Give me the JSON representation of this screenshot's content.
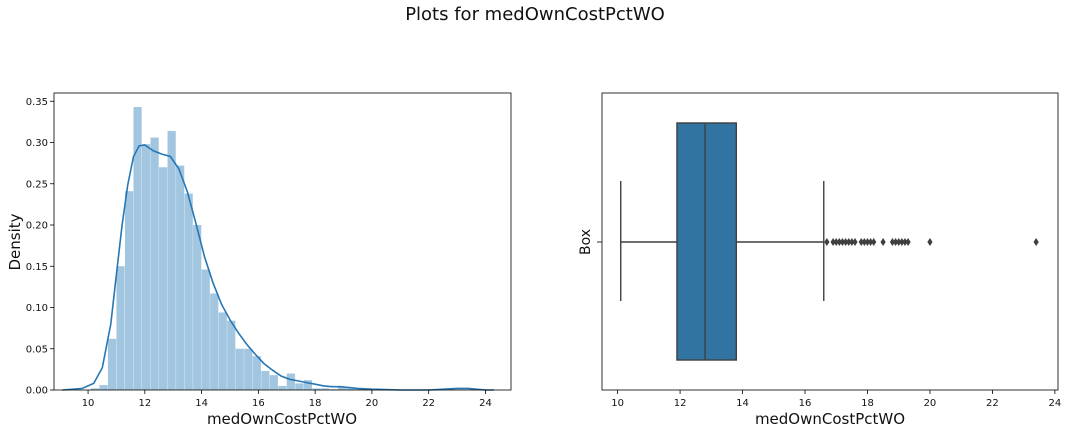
{
  "figure": {
    "title": "Plots for medOwnCostPctWO"
  },
  "colors": {
    "hist_fill": "#a3c6e0",
    "kde_line": "#2777b4",
    "box_fill": "#3274a1",
    "box_line": "#3f3f3f"
  },
  "chart_data": [
    {
      "type": "bar",
      "subtype": "histogram-with-kde",
      "xlabel": "medOwnCostPctWO",
      "ylabel": "Density",
      "xlim": [
        8.8,
        24.9
      ],
      "ylim": [
        0,
        0.36
      ],
      "xticks": [
        10,
        12,
        14,
        16,
        18,
        20,
        22,
        24
      ],
      "yticks": [
        0.0,
        0.05,
        0.1,
        0.15,
        0.2,
        0.25,
        0.3,
        0.35
      ],
      "ytick_labels": [
        "0.00",
        "0.05",
        "0.10",
        "0.15",
        "0.20",
        "0.25",
        "0.30",
        "0.35"
      ],
      "bin_edges": [
        10.1,
        10.4,
        10.7,
        11.0,
        11.3,
        11.6,
        11.9,
        12.2,
        12.5,
        12.8,
        13.1,
        13.4,
        13.7,
        14.0,
        14.3,
        14.6,
        14.9,
        15.2,
        15.5,
        15.8,
        16.1,
        16.4,
        16.7,
        17.0,
        17.3,
        17.6,
        17.9,
        18.2,
        18.5,
        18.8,
        19.1,
        19.4,
        19.7,
        20.0
      ],
      "values": [
        0.002,
        0.006,
        0.062,
        0.15,
        0.241,
        0.343,
        0.298,
        0.306,
        0.27,
        0.314,
        0.272,
        0.238,
        0.2,
        0.146,
        0.117,
        0.094,
        0.084,
        0.05,
        0.05,
        0.041,
        0.023,
        0.018,
        0.005,
        0.02,
        0.008,
        0.012,
        0.002,
        0.002,
        0.001,
        0.004,
        0.003,
        0.001,
        0.001
      ],
      "kde": {
        "x": [
          9.1,
          9.8,
          10.2,
          10.5,
          10.8,
          11.0,
          11.2,
          11.4,
          11.6,
          11.8,
          12.0,
          12.3,
          12.6,
          12.9,
          13.2,
          13.5,
          13.8,
          14.1,
          14.4,
          14.7,
          15.0,
          15.3,
          15.6,
          15.9,
          16.2,
          16.5,
          16.8,
          17.1,
          17.4,
          17.7,
          18.0,
          18.3,
          18.6,
          18.9,
          19.2,
          19.5,
          20.0,
          21.0,
          22.0,
          23.0,
          23.4,
          24.0,
          24.3
        ],
        "y": [
          0.0,
          0.002,
          0.008,
          0.027,
          0.08,
          0.14,
          0.2,
          0.249,
          0.283,
          0.296,
          0.297,
          0.29,
          0.286,
          0.283,
          0.268,
          0.24,
          0.202,
          0.162,
          0.13,
          0.104,
          0.085,
          0.069,
          0.055,
          0.043,
          0.032,
          0.024,
          0.017,
          0.013,
          0.011,
          0.009,
          0.007,
          0.005,
          0.004,
          0.004,
          0.003,
          0.002,
          0.001,
          0.0,
          0.0,
          0.002,
          0.002,
          0.0,
          0.0
        ]
      }
    },
    {
      "type": "box",
      "xlabel": "medOwnCostPctWO",
      "ylabel": "Box",
      "xlim": [
        9.5,
        24.1
      ],
      "xticks": [
        10,
        12,
        14,
        16,
        18,
        20,
        22,
        24
      ],
      "whisker_low": 10.1,
      "q1": 11.9,
      "median": 12.8,
      "q3": 13.8,
      "whisker_high": 16.6,
      "outliers": [
        16.7,
        16.9,
        17.0,
        17.1,
        17.2,
        17.3,
        17.4,
        17.5,
        17.6,
        17.8,
        17.9,
        18.0,
        18.1,
        18.2,
        18.5,
        18.8,
        18.9,
        19.0,
        19.1,
        19.2,
        19.3,
        20.0,
        23.4
      ]
    }
  ]
}
